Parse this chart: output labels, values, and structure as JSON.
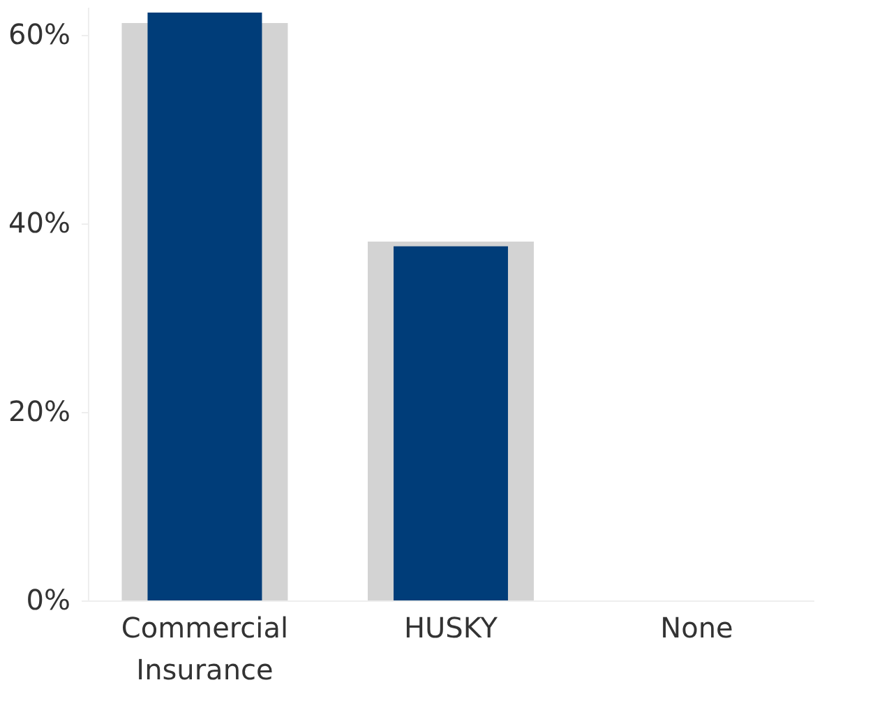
{
  "chart_data": {
    "type": "bar",
    "categories": [
      "Commercial Insurance",
      "HUSKY",
      "None"
    ],
    "series": [
      {
        "color": "#d3d3d3",
        "values": [
          61.3,
          38.1,
          0
        ]
      },
      {
        "color": "#003d79",
        "values": [
          62.4,
          37.6,
          0
        ]
      }
    ],
    "ylim": [
      0,
      63
    ],
    "yticks": [
      {
        "value": 0,
        "label": "0%"
      },
      {
        "value": 20,
        "label": "20%"
      },
      {
        "value": 40,
        "label": "40%"
      },
      {
        "value": 60,
        "label": "60%"
      }
    ],
    "grid": false
  }
}
